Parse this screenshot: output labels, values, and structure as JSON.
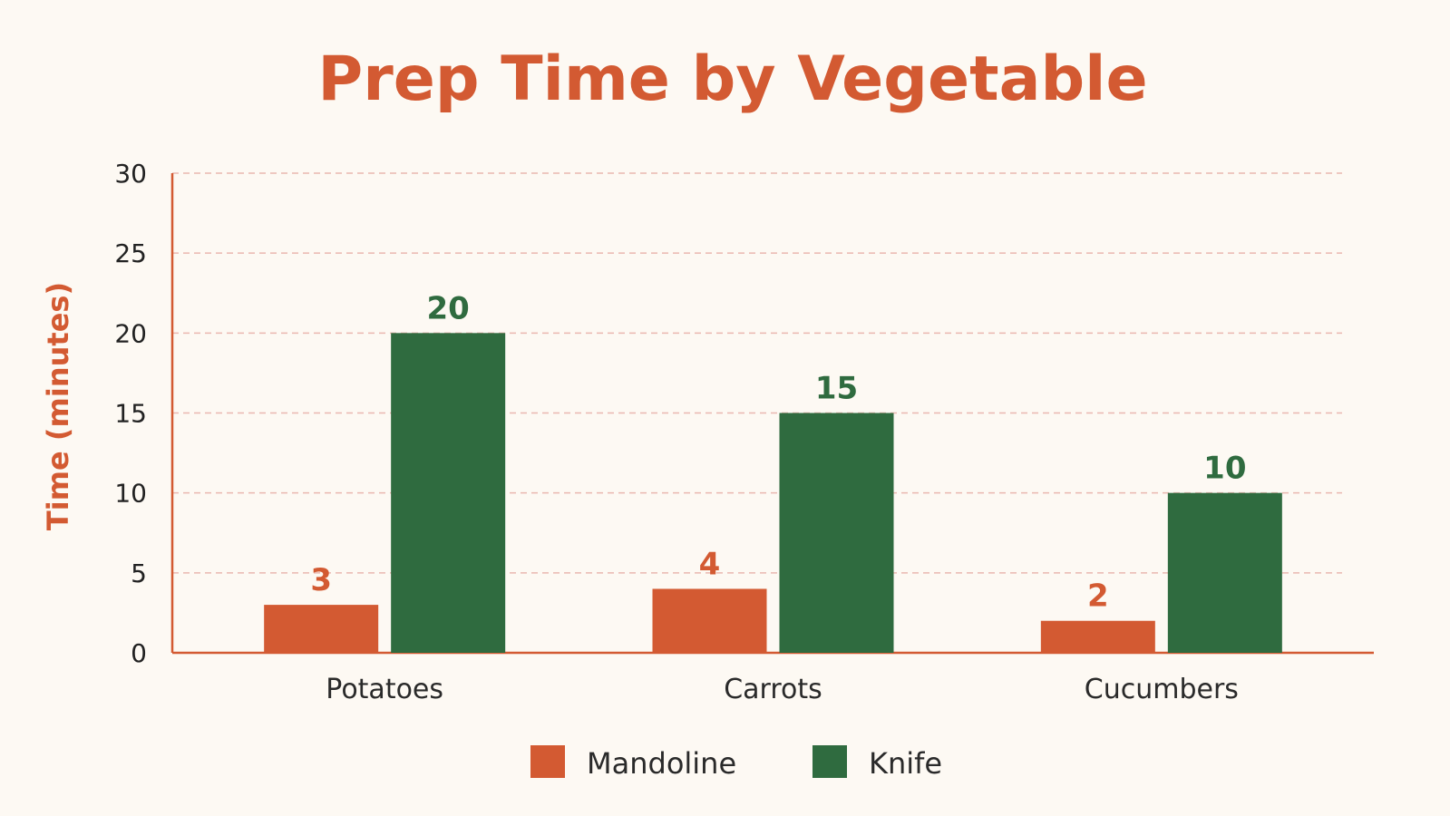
{
  "chart_data": {
    "type": "bar",
    "title": "Prep Time by Vegetable",
    "xlabel": "",
    "ylabel": "Time (minutes)",
    "ylim": [
      0,
      30
    ],
    "yticks": [
      0,
      5,
      10,
      15,
      20,
      25,
      30
    ],
    "categories": [
      "Potatoes",
      "Carrots",
      "Cucumbers"
    ],
    "series": [
      {
        "name": "Mandoline",
        "values": [
          3,
          4,
          2
        ],
        "color": "#d35a32"
      },
      {
        "name": "Knife",
        "values": [
          20,
          15,
          10
        ],
        "color": "#2f6b3f"
      }
    ],
    "grid": true,
    "legend_position": "bottom",
    "colors": {
      "title": "#d35a32",
      "axis": "#d35a32",
      "grid": "#eab8b0",
      "background": "#fdf9f3"
    }
  }
}
